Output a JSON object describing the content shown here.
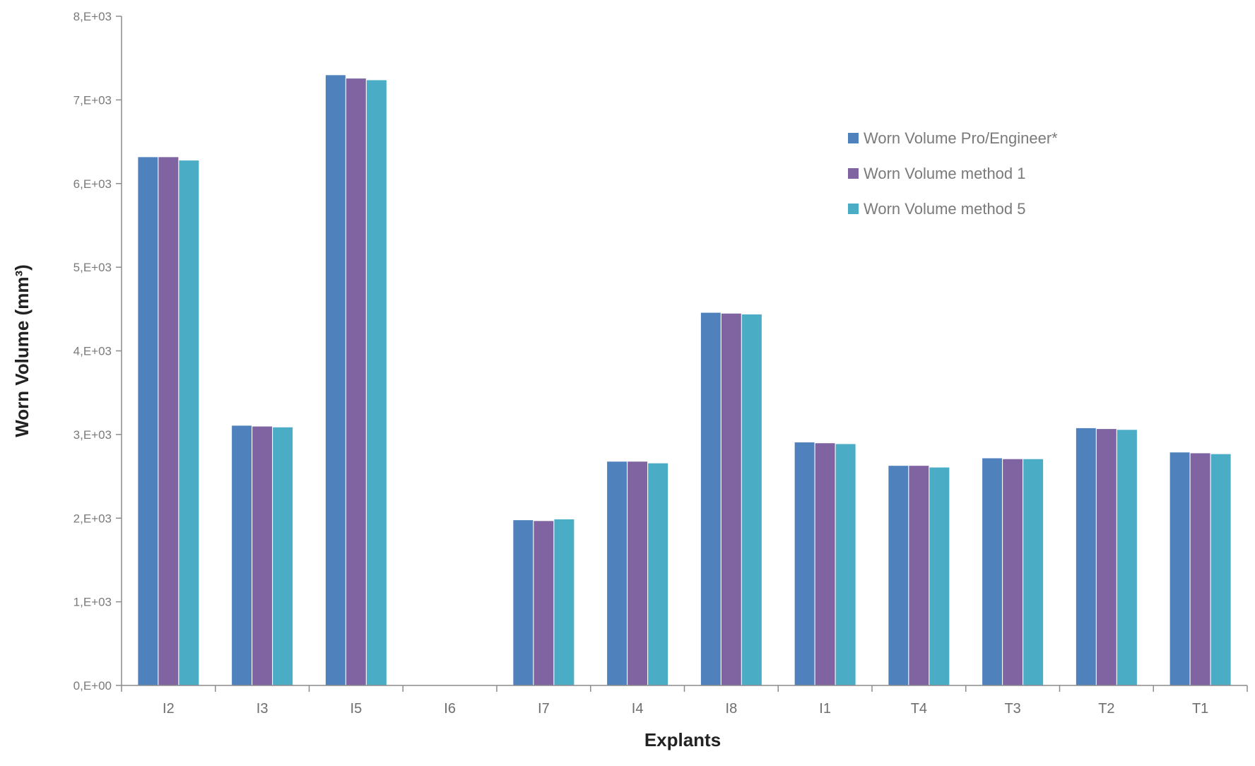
{
  "chart_data": {
    "type": "bar",
    "title": "",
    "xlabel": "Explants",
    "ylabel": "Worn Volume (mm³)",
    "ylim": [
      0,
      8000
    ],
    "yticks": [
      {
        "value": 0,
        "label": "0,E+00"
      },
      {
        "value": 1000,
        "label": "1,E+03"
      },
      {
        "value": 2000,
        "label": "2,E+03"
      },
      {
        "value": 3000,
        "label": "3,E+03"
      },
      {
        "value": 4000,
        "label": "4,E+03"
      },
      {
        "value": 5000,
        "label": "5,E+03"
      },
      {
        "value": 6000,
        "label": "6,E+03"
      },
      {
        "value": 7000,
        "label": "7,E+03"
      },
      {
        "value": 8000,
        "label": "8,E+03"
      }
    ],
    "categories": [
      "I2",
      "I3",
      "I5",
      "I6",
      "I7",
      "I4",
      "I8",
      "I1",
      "T4",
      "T3",
      "T2",
      "T1"
    ],
    "series": [
      {
        "name": "Worn Volume Pro/Engineer*",
        "color": "#4F81BD",
        "values": [
          6320,
          3110,
          7300,
          0,
          1980,
          2680,
          4460,
          2910,
          2630,
          2720,
          3080,
          2790
        ]
      },
      {
        "name": "Worn Volume method 1",
        "color": "#8064A2",
        "values": [
          6320,
          3100,
          7260,
          0,
          1970,
          2680,
          4450,
          2900,
          2630,
          2710,
          3070,
          2780
        ]
      },
      {
        "name": "Worn Volume method 5",
        "color": "#4BACC6",
        "values": [
          6280,
          3090,
          7240,
          0,
          1990,
          2660,
          4440,
          2890,
          2610,
          2710,
          3060,
          2770
        ]
      }
    ],
    "grid": false,
    "legend_position": "top-right"
  }
}
